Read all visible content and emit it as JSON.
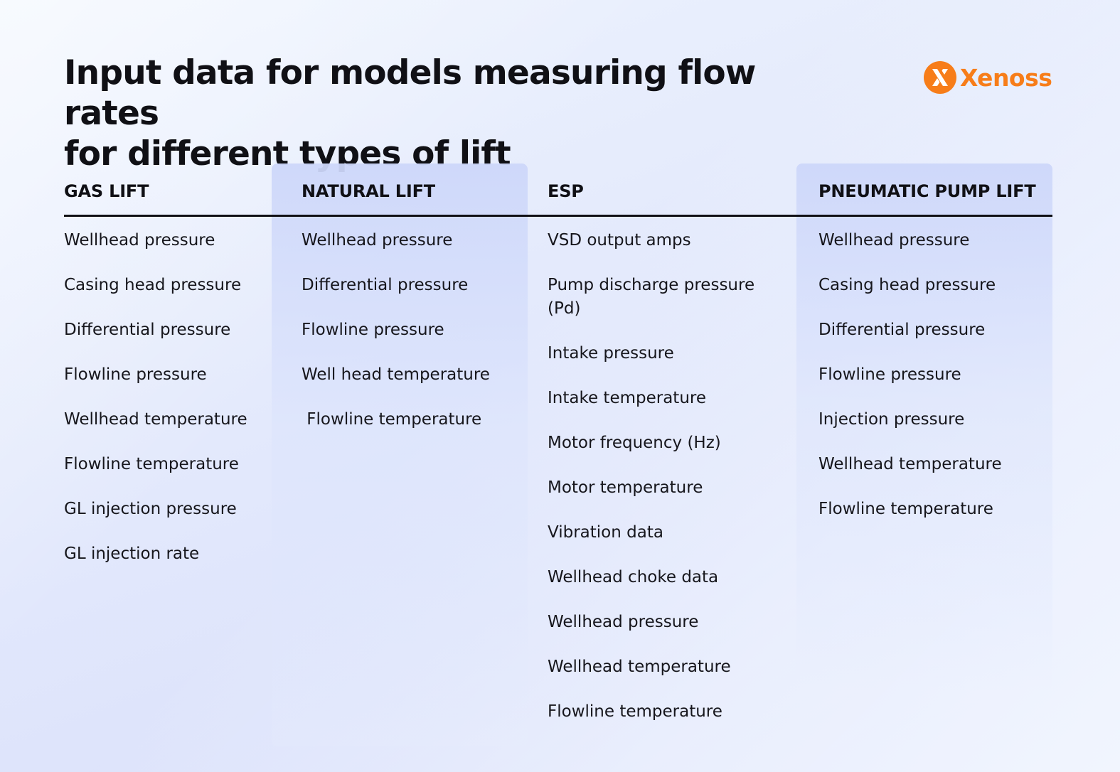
{
  "title": {
    "line1": "Input data for models measuring flow rates",
    "line2": "for different types of lift"
  },
  "brand": {
    "name": "Xenoss",
    "color": "#f77d19",
    "icon": "xenoss-logo-icon"
  },
  "columns": [
    {
      "header": "GAS LIFT",
      "items": [
        "Wellhead pressure",
        "Casing head pressure",
        "Differential pressure",
        "Flowline pressure",
        "Wellhead temperature",
        "Flowline temperature",
        "GL injection pressure",
        "GL injection rate"
      ]
    },
    {
      "header": "NATURAL LIFT",
      "items": [
        "Wellhead pressure",
        "Differential pressure",
        "Flowline pressure",
        "Well head temperature",
        " Flowline temperature"
      ]
    },
    {
      "header": "ESP",
      "items": [
        "VSD output amps",
        "Pump discharge pressure (Pd)",
        "Intake pressure",
        "Intake temperature",
        "Motor frequency (Hz)",
        "Motor temperature",
        "Vibration data",
        "Wellhead choke data",
        "Wellhead pressure",
        "Wellhead temperature",
        "Flowline temperature"
      ]
    },
    {
      "header": "PNEUMATIC PUMP LIFT",
      "items": [
        "Wellhead pressure",
        "Casing head pressure",
        "Differential pressure",
        "Flowline pressure",
        "Injection pressure",
        "Wellhead temperature",
        "Flowline temperature"
      ]
    }
  ]
}
